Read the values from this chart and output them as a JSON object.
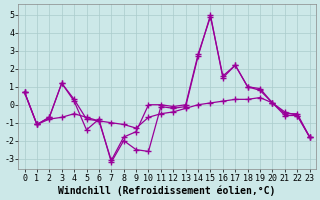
{
  "background_color": "#cce8e8",
  "grid_color": "#aacccc",
  "line_color": "#990099",
  "marker": "+",
  "markersize": 4,
  "linewidth": 0.9,
  "xlabel": "Windchill (Refroidissement éolien,°C)",
  "xlabel_fontsize": 7,
  "tick_fontsize": 6,
  "xlim": [
    -0.5,
    23.5
  ],
  "ylim": [
    -3.6,
    5.6
  ],
  "yticks": [
    -3,
    -2,
    -1,
    0,
    1,
    2,
    3,
    4,
    5
  ],
  "xticks": [
    0,
    1,
    2,
    3,
    4,
    5,
    6,
    7,
    8,
    9,
    10,
    11,
    12,
    13,
    14,
    15,
    16,
    17,
    18,
    19,
    20,
    21,
    22,
    23
  ],
  "series": [
    [
      0.7,
      -1.1,
      -0.7,
      1.2,
      0.3,
      -0.8,
      -0.9,
      -3.1,
      -1.8,
      -1.5,
      0.0,
      0.0,
      -0.1,
      0.0,
      2.8,
      4.9,
      1.6,
      2.2,
      1.0,
      0.8,
      0.1,
      -0.5,
      -0.5,
      -1.8
    ],
    [
      0.7,
      -1.1,
      -0.7,
      1.2,
      0.2,
      -1.4,
      -0.8,
      -3.2,
      -2.0,
      -2.5,
      -2.6,
      -0.1,
      -0.2,
      -0.1,
      2.7,
      5.0,
      1.5,
      2.2,
      1.0,
      0.9,
      0.1,
      -0.6,
      -0.6,
      -1.8
    ],
    [
      0.7,
      -1.1,
      -0.8,
      -0.7,
      -0.5,
      -0.7,
      -0.9,
      -1.0,
      -1.1,
      -1.3,
      -0.7,
      -0.5,
      -0.4,
      -0.2,
      0.0,
      0.1,
      0.2,
      0.3,
      0.3,
      0.4,
      0.1,
      -0.4,
      -0.6,
      -1.8
    ]
  ]
}
